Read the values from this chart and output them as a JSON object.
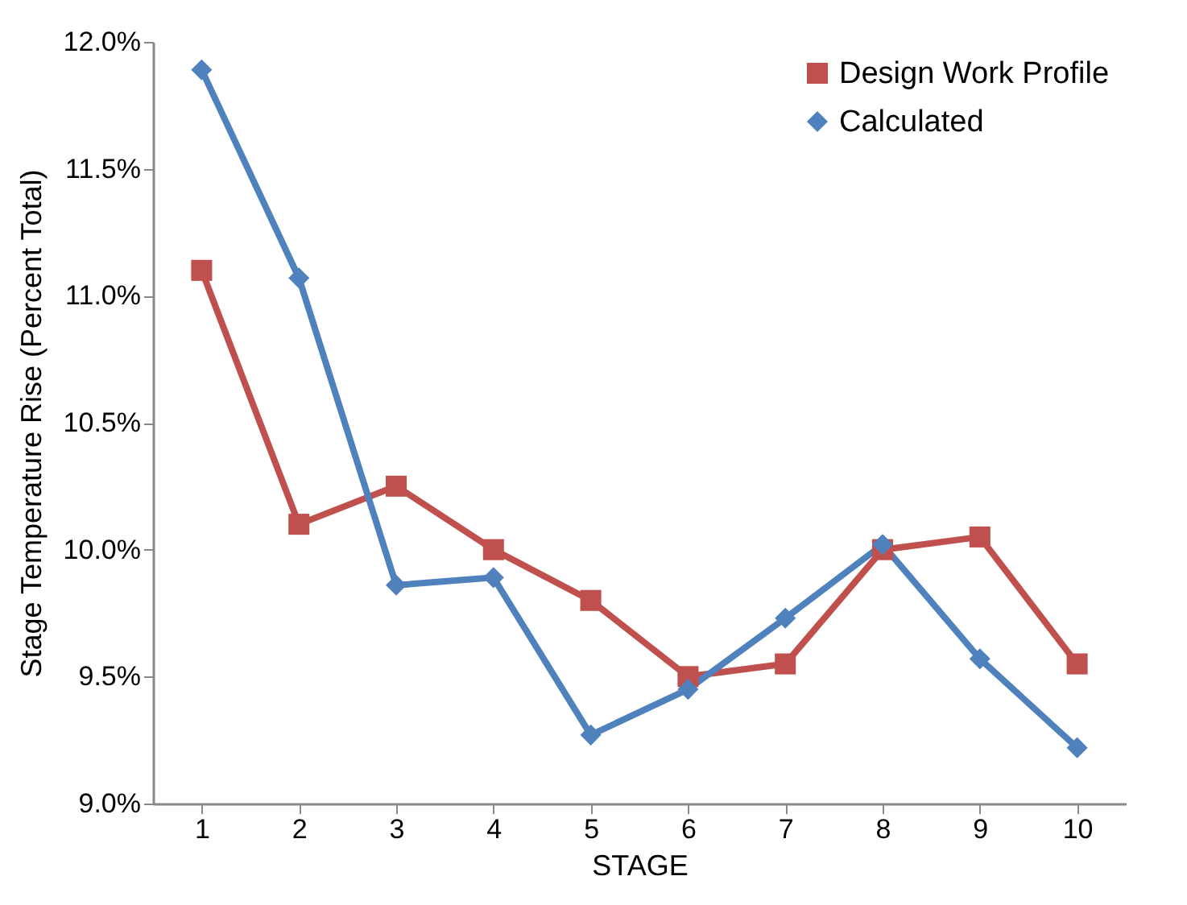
{
  "chart_data": {
    "type": "line",
    "xlabel": "STAGE",
    "ylabel": "Stage Temperature Rise (Percent Total)",
    "categories": [
      "1",
      "2",
      "3",
      "4",
      "5",
      "6",
      "7",
      "8",
      "9",
      "10"
    ],
    "series": [
      {
        "name": "Design Work Profile",
        "color": "#c0504d",
        "marker": "square",
        "values": [
          11.1,
          10.1,
          10.25,
          10.0,
          9.8,
          9.5,
          9.55,
          10.0,
          10.05,
          9.55
        ]
      },
      {
        "name": "Calculated",
        "color": "#4f81bd",
        "marker": "diamond",
        "values": [
          11.89,
          11.07,
          9.86,
          9.89,
          9.27,
          9.45,
          9.73,
          10.02,
          9.57,
          9.22
        ]
      }
    ],
    "ylim": [
      9.0,
      12.0
    ],
    "yticks": [
      {
        "value": 9.0,
        "label": "9.0%"
      },
      {
        "value": 9.5,
        "label": "9.5%"
      },
      {
        "value": 10.0,
        "label": "10.0%"
      },
      {
        "value": 10.5,
        "label": "10.5%"
      },
      {
        "value": 11.0,
        "label": "11.0%"
      },
      {
        "value": 11.5,
        "label": "11.5%"
      },
      {
        "value": 12.0,
        "label": "12.0%"
      }
    ],
    "grid": false,
    "legend": "top right"
  }
}
